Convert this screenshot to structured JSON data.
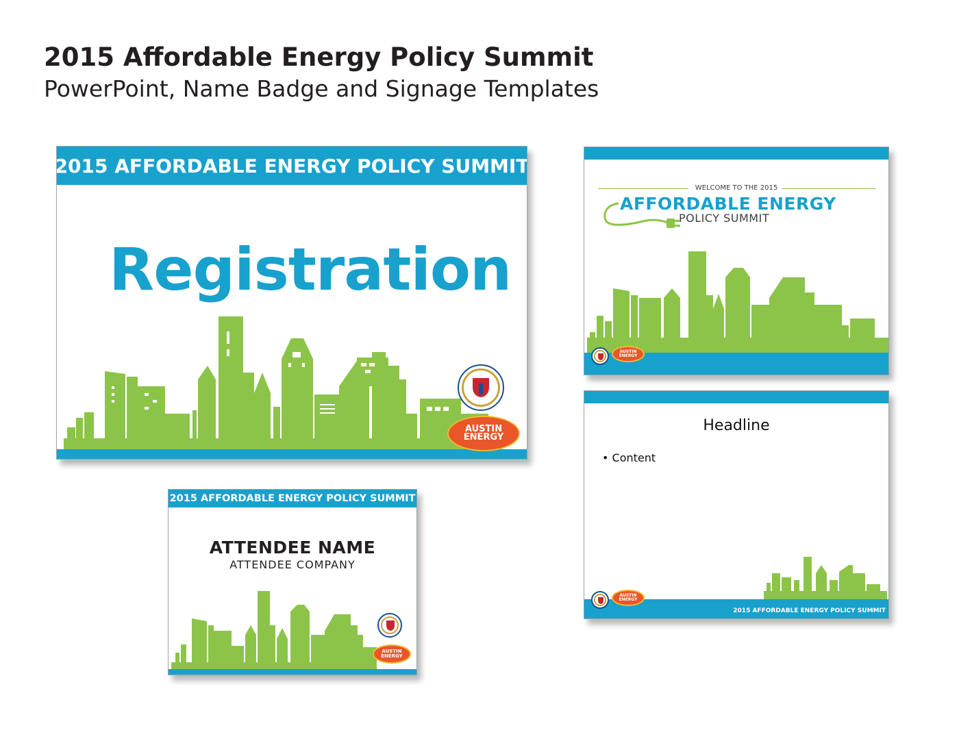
{
  "header": {
    "title": "2015 Affordable Energy Policy Summit",
    "subtitle": "PowerPoint, Name Badge and Signage Templates"
  },
  "colors": {
    "accent_blue": "#18a1cd",
    "skyline_green": "#8cc44a",
    "logo_orange": "#e8562a",
    "seal_blue": "#1a4f8b",
    "seal_red": "#c8262e"
  },
  "registration_sign": {
    "banner": "2015 AFFORDABLE ENERGY POLICY SUMMIT",
    "word": "Registration",
    "logo_line1": "AUSTIN",
    "logo_line2": "ENERGY"
  },
  "welcome_slide": {
    "small_text": "WELCOME TO THE 2015",
    "big_text": "AFFORDABLE ENERGY",
    "sub_text": "POLICY SUMMIT",
    "logo_line1": "AUSTIN",
    "logo_line2": "ENERGY"
  },
  "content_slide": {
    "headline": "Headline",
    "bullet": "Content",
    "footer": "2015 AFFORDABLE ENERGY POLICY SUMMIT",
    "logo_line1": "AUSTIN",
    "logo_line2": "ENERGY"
  },
  "name_badge": {
    "banner": "2015 AFFORDABLE ENERGY POLICY SUMMIT",
    "name": "ATTENDEE NAME",
    "company": "ATTENDEE COMPANY",
    "logo_line1": "AUSTIN",
    "logo_line2": "ENERGY"
  },
  "icons": [
    "city-of-austin-seal-icon",
    "austin-energy-logo-icon",
    "plug-cord-icon",
    "city-skyline-icon"
  ]
}
